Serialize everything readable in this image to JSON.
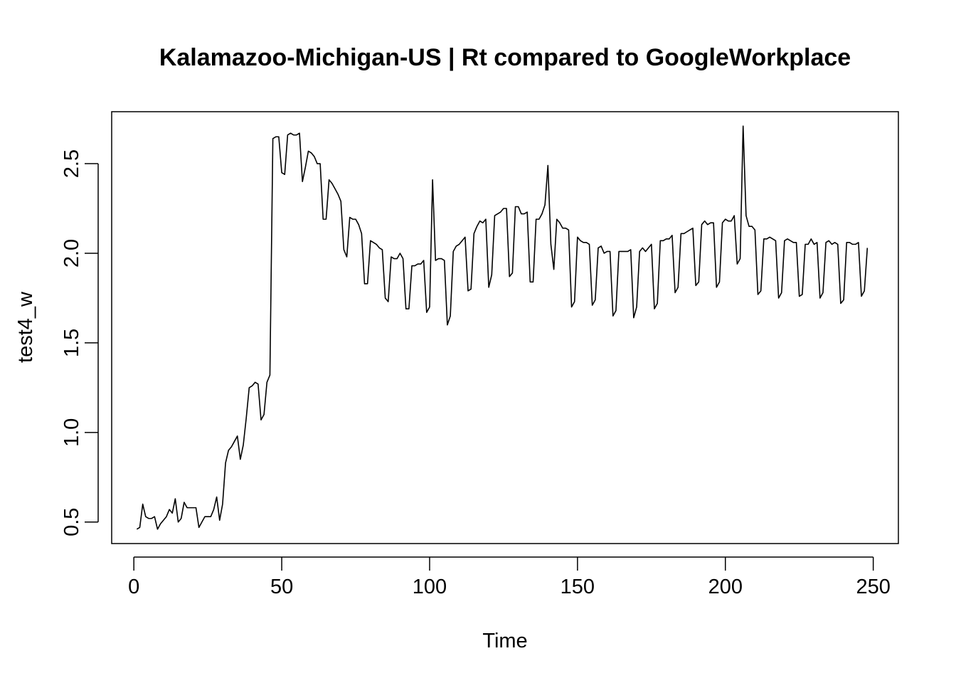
{
  "chart_data": {
    "type": "line",
    "title": "Kalamazoo-Michigan-US | Rt compared to GoogleWorkplace",
    "xlabel": "Time",
    "ylabel": "test4_w",
    "xlim": [
      -7.5,
      258.5
    ],
    "ylim": [
      0.38,
      2.79
    ],
    "xticks": [
      0,
      50,
      100,
      150,
      200,
      250
    ],
    "xtick_labels": [
      "0",
      "50",
      "100",
      "150",
      "200",
      "250"
    ],
    "yticks": [
      0.5,
      1.0,
      1.5,
      2.0,
      2.5
    ],
    "ytick_labels": [
      "0.5",
      "1.0",
      "1.5",
      "2.0",
      "2.5"
    ],
    "grid": false,
    "legend": "none",
    "series": [
      {
        "x": [
          1,
          2,
          3,
          4,
          5,
          6,
          7,
          8,
          9,
          10,
          11,
          12,
          13,
          14,
          15,
          16,
          17,
          18,
          19,
          20,
          21,
          22,
          23,
          24,
          25,
          26,
          27,
          28,
          29,
          30,
          31,
          32,
          33,
          34,
          35,
          36,
          37,
          38,
          39,
          40,
          41,
          42,
          43,
          44,
          45,
          46,
          47,
          48,
          49,
          50,
          51,
          52,
          53,
          54,
          55,
          56,
          57,
          58,
          59,
          60,
          61,
          62,
          63,
          64,
          65,
          66,
          67,
          68,
          69,
          70,
          71,
          72,
          73,
          74,
          75,
          76,
          77,
          78,
          79,
          80,
          81,
          82,
          83,
          84,
          85,
          86,
          87,
          88,
          89,
          90,
          91,
          92,
          93,
          94,
          95,
          96,
          97,
          98,
          99,
          100,
          101,
          102,
          103,
          104,
          105,
          106,
          107,
          108,
          109,
          110,
          111,
          112,
          113,
          114,
          115,
          116,
          117,
          118,
          119,
          120,
          121,
          122,
          123,
          124,
          125,
          126,
          127,
          128,
          129,
          130,
          131,
          132,
          133,
          134,
          135,
          136,
          137,
          138,
          139,
          140,
          141,
          142,
          143,
          144,
          145,
          146,
          147,
          148,
          149,
          150,
          151,
          152,
          153,
          154,
          155,
          156,
          157,
          158,
          159,
          160,
          161,
          162,
          163,
          164,
          165,
          166,
          167,
          168,
          169,
          170,
          171,
          172,
          173,
          174,
          175,
          176,
          177,
          178,
          179,
          180,
          181,
          182,
          183,
          184,
          185,
          186,
          187,
          188,
          189,
          190,
          191,
          192,
          193,
          194,
          195,
          196,
          197,
          198,
          199,
          200,
          201,
          202,
          203,
          204,
          205,
          206,
          207,
          208,
          209,
          210,
          211,
          212,
          213,
          214,
          215,
          216,
          217,
          218,
          219,
          220,
          221,
          222,
          223,
          224,
          225,
          226,
          227,
          228,
          229,
          230,
          231,
          232,
          233,
          234,
          235,
          236,
          237,
          238,
          239,
          240,
          241,
          242,
          243,
          244,
          245,
          246,
          247,
          248
        ],
        "values": [
          0.46,
          0.47,
          0.6,
          0.53,
          0.52,
          0.52,
          0.53,
          0.46,
          0.49,
          0.51,
          0.53,
          0.57,
          0.55,
          0.63,
          0.5,
          0.52,
          0.61,
          0.58,
          0.58,
          0.58,
          0.58,
          0.47,
          0.5,
          0.53,
          0.53,
          0.53,
          0.57,
          0.64,
          0.51,
          0.6,
          0.83,
          0.9,
          0.92,
          0.95,
          0.98,
          0.85,
          0.93,
          1.08,
          1.25,
          1.26,
          1.28,
          1.27,
          1.07,
          1.1,
          1.28,
          1.32,
          2.64,
          2.65,
          2.65,
          2.45,
          2.44,
          2.66,
          2.67,
          2.66,
          2.66,
          2.67,
          2.4,
          2.48,
          2.57,
          2.56,
          2.54,
          2.5,
          2.5,
          2.19,
          2.19,
          2.41,
          2.39,
          2.36,
          2.33,
          2.29,
          2.02,
          1.98,
          2.2,
          2.19,
          2.19,
          2.16,
          2.11,
          1.83,
          1.83,
          2.07,
          2.06,
          2.05,
          2.03,
          2.02,
          1.75,
          1.73,
          1.98,
          1.97,
          1.97,
          2.0,
          1.97,
          1.69,
          1.69,
          1.93,
          1.93,
          1.94,
          1.94,
          1.96,
          1.67,
          1.7,
          2.41,
          1.96,
          1.97,
          1.97,
          1.96,
          1.6,
          1.65,
          2.01,
          2.04,
          2.05,
          2.07,
          2.09,
          1.79,
          1.8,
          2.11,
          2.15,
          2.18,
          2.17,
          2.19,
          1.81,
          1.88,
          2.21,
          2.22,
          2.23,
          2.25,
          2.25,
          1.87,
          1.89,
          2.26,
          2.26,
          2.22,
          2.22,
          2.23,
          1.84,
          1.84,
          2.19,
          2.19,
          2.22,
          2.27,
          2.49,
          2.05,
          1.91,
          2.19,
          2.17,
          2.14,
          2.14,
          2.13,
          1.7,
          1.73,
          2.09,
          2.07,
          2.06,
          2.06,
          2.05,
          1.71,
          1.74,
          2.03,
          2.04,
          2.0,
          2.01,
          2.01,
          1.65,
          1.68,
          2.01,
          2.01,
          2.01,
          2.01,
          2.02,
          1.64,
          1.7,
          2.01,
          2.03,
          2.01,
          2.03,
          2.05,
          1.69,
          1.72,
          2.07,
          2.07,
          2.08,
          2.08,
          2.1,
          1.78,
          1.81,
          2.11,
          2.11,
          2.12,
          2.13,
          2.14,
          1.82,
          1.84,
          2.16,
          2.18,
          2.16,
          2.17,
          2.17,
          1.81,
          1.84,
          2.17,
          2.19,
          2.18,
          2.18,
          2.21,
          1.94,
          1.97,
          2.71,
          2.21,
          2.15,
          2.15,
          2.13,
          1.77,
          1.79,
          2.08,
          2.08,
          2.09,
          2.08,
          2.07,
          1.75,
          1.78,
          2.07,
          2.08,
          2.07,
          2.06,
          2.06,
          1.76,
          1.77,
          2.05,
          2.05,
          2.08,
          2.05,
          2.06,
          1.75,
          1.78,
          2.06,
          2.07,
          2.05,
          2.06,
          2.05,
          1.72,
          1.74,
          2.06,
          2.06,
          2.05,
          2.05,
          2.06,
          1.76,
          1.79,
          2.03
        ]
      }
    ]
  }
}
